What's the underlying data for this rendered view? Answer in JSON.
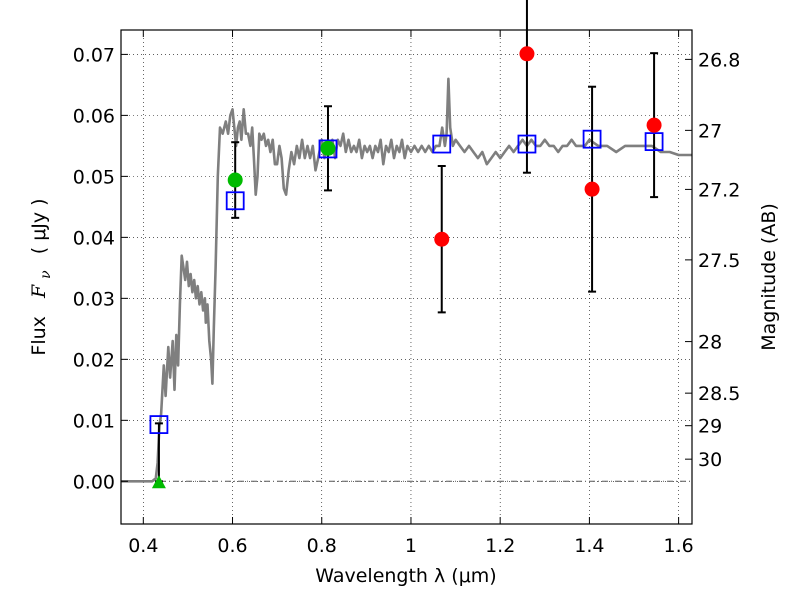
{
  "chart_data": {
    "type": "scatter",
    "xlabel": "Wavelength  λ (μm)",
    "ylabel_text": "Flux",
    "ylabel_symbol": "F",
    "ylabel_subscript": "ν",
    "ylabel_unit": "( μJy )",
    "y2label": "Magnitude (AB)",
    "xlim": [
      0.35,
      1.63
    ],
    "ylim": [
      -0.007,
      0.074
    ],
    "x_ticks": [
      0.4,
      0.6,
      0.8,
      1.0,
      1.2,
      1.4,
      1.6
    ],
    "x_tick_labels": [
      "0.4",
      "0.6",
      "0.8",
      "1",
      "1.2",
      "1.4",
      "1.6"
    ],
    "y_ticks": [
      0.0,
      0.01,
      0.02,
      0.03,
      0.04,
      0.05,
      0.06,
      0.07
    ],
    "y_tick_labels": [
      "0.00",
      "0.01",
      "0.02",
      "0.03",
      "0.04",
      "0.05",
      "0.06",
      "0.07"
    ],
    "grid": true,
    "mag_ticks": [
      {
        "label": "26.8",
        "mag": 26.8
      },
      {
        "label": "27",
        "mag": 27.0
      },
      {
        "label": "27.2",
        "mag": 27.2
      },
      {
        "label": "27.5",
        "mag": 27.5
      },
      {
        "label": "28",
        "mag": 28.0
      },
      {
        "label": "28.5",
        "mag": 28.5
      },
      {
        "label": "29",
        "mag": 29.0
      },
      {
        "label": "30",
        "mag": 30.0
      }
    ],
    "colors": {
      "model": "#7f7f7f",
      "observed": "#ff0000",
      "synthetic": "#0000ff",
      "hst": "#00bb00",
      "errorbar": "#000000"
    },
    "model_sed": [
      [
        0.35,
        0.0
      ],
      [
        0.42,
        0.0
      ],
      [
        0.428,
        0.0005
      ],
      [
        0.432,
        0.003
      ],
      [
        0.436,
        0.009
      ],
      [
        0.44,
        0.011
      ],
      [
        0.446,
        0.019
      ],
      [
        0.45,
        0.014
      ],
      [
        0.456,
        0.022
      ],
      [
        0.46,
        0.017
      ],
      [
        0.466,
        0.023
      ],
      [
        0.47,
        0.015
      ],
      [
        0.474,
        0.024
      ],
      [
        0.478,
        0.019
      ],
      [
        0.482,
        0.029
      ],
      [
        0.486,
        0.037
      ],
      [
        0.49,
        0.035
      ],
      [
        0.494,
        0.033
      ],
      [
        0.498,
        0.036
      ],
      [
        0.502,
        0.032
      ],
      [
        0.506,
        0.034
      ],
      [
        0.51,
        0.031
      ],
      [
        0.514,
        0.033
      ],
      [
        0.518,
        0.03
      ],
      [
        0.522,
        0.032
      ],
      [
        0.526,
        0.029
      ],
      [
        0.53,
        0.031
      ],
      [
        0.534,
        0.028
      ],
      [
        0.538,
        0.03
      ],
      [
        0.54,
        0.026
      ],
      [
        0.544,
        0.029
      ],
      [
        0.548,
        0.023
      ],
      [
        0.552,
        0.02
      ],
      [
        0.555,
        0.016
      ],
      [
        0.558,
        0.025
      ],
      [
        0.562,
        0.035
      ],
      [
        0.567,
        0.05
      ],
      [
        0.572,
        0.058
      ],
      [
        0.578,
        0.057
      ],
      [
        0.585,
        0.059
      ],
      [
        0.59,
        0.057
      ],
      [
        0.595,
        0.06
      ],
      [
        0.6,
        0.061
      ],
      [
        0.604,
        0.058
      ],
      [
        0.608,
        0.055
      ],
      [
        0.612,
        0.058
      ],
      [
        0.616,
        0.059
      ],
      [
        0.62,
        0.056
      ],
      [
        0.625,
        0.061
      ],
      [
        0.63,
        0.057
      ],
      [
        0.635,
        0.057
      ],
      [
        0.64,
        0.055
      ],
      [
        0.644,
        0.058
      ],
      [
        0.648,
        0.053
      ],
      [
        0.652,
        0.047
      ],
      [
        0.656,
        0.05
      ],
      [
        0.66,
        0.057
      ],
      [
        0.665,
        0.056
      ],
      [
        0.67,
        0.057
      ],
      [
        0.675,
        0.055
      ],
      [
        0.68,
        0.056
      ],
      [
        0.685,
        0.054
      ],
      [
        0.69,
        0.056
      ],
      [
        0.695,
        0.052
      ],
      [
        0.7,
        0.052
      ],
      [
        0.705,
        0.055
      ],
      [
        0.71,
        0.053
      ],
      [
        0.715,
        0.048
      ],
      [
        0.72,
        0.047
      ],
      [
        0.726,
        0.051
      ],
      [
        0.732,
        0.054
      ],
      [
        0.738,
        0.052
      ],
      [
        0.744,
        0.055
      ],
      [
        0.75,
        0.053
      ],
      [
        0.756,
        0.056
      ],
      [
        0.762,
        0.053
      ],
      [
        0.768,
        0.055
      ],
      [
        0.774,
        0.053
      ],
      [
        0.78,
        0.055
      ],
      [
        0.786,
        0.051
      ],
      [
        0.792,
        0.053
      ],
      [
        0.8,
        0.056
      ],
      [
        0.806,
        0.053
      ],
      [
        0.812,
        0.055
      ],
      [
        0.818,
        0.054
      ],
      [
        0.824,
        0.056
      ],
      [
        0.83,
        0.053
      ],
      [
        0.836,
        0.056
      ],
      [
        0.842,
        0.055
      ],
      [
        0.848,
        0.057
      ],
      [
        0.854,
        0.054
      ],
      [
        0.86,
        0.056
      ],
      [
        0.866,
        0.054
      ],
      [
        0.872,
        0.055
      ],
      [
        0.878,
        0.054
      ],
      [
        0.884,
        0.056
      ],
      [
        0.89,
        0.053
      ],
      [
        0.896,
        0.055
      ],
      [
        0.902,
        0.054
      ],
      [
        0.908,
        0.055
      ],
      [
        0.914,
        0.053
      ],
      [
        0.92,
        0.055
      ],
      [
        0.926,
        0.054
      ],
      [
        0.932,
        0.056
      ],
      [
        0.938,
        0.052
      ],
      [
        0.944,
        0.055
      ],
      [
        0.95,
        0.054
      ],
      [
        0.956,
        0.056
      ],
      [
        0.962,
        0.053
      ],
      [
        0.968,
        0.055
      ],
      [
        0.974,
        0.054
      ],
      [
        0.98,
        0.056
      ],
      [
        0.986,
        0.053
      ],
      [
        0.992,
        0.055
      ],
      [
        1.0,
        0.054
      ],
      [
        1.008,
        0.055
      ],
      [
        1.016,
        0.054
      ],
      [
        1.024,
        0.055
      ],
      [
        1.032,
        0.054
      ],
      [
        1.04,
        0.055
      ],
      [
        1.048,
        0.054
      ],
      [
        1.056,
        0.055
      ],
      [
        1.064,
        0.055
      ],
      [
        1.07,
        0.058
      ],
      [
        1.076,
        0.055
      ],
      [
        1.08,
        0.057
      ],
      [
        1.084,
        0.066
      ],
      [
        1.088,
        0.058
      ],
      [
        1.094,
        0.055
      ],
      [
        1.1,
        0.056
      ],
      [
        1.11,
        0.055
      ],
      [
        1.12,
        0.054
      ],
      [
        1.13,
        0.055
      ],
      [
        1.14,
        0.054
      ],
      [
        1.15,
        0.053
      ],
      [
        1.16,
        0.054
      ],
      [
        1.17,
        0.052
      ],
      [
        1.18,
        0.053
      ],
      [
        1.19,
        0.054
      ],
      [
        1.2,
        0.053
      ],
      [
        1.21,
        0.054
      ],
      [
        1.22,
        0.055
      ],
      [
        1.23,
        0.054
      ],
      [
        1.24,
        0.055
      ],
      [
        1.25,
        0.056
      ],
      [
        1.26,
        0.055
      ],
      [
        1.27,
        0.056
      ],
      [
        1.28,
        0.055
      ],
      [
        1.29,
        0.055
      ],
      [
        1.3,
        0.056
      ],
      [
        1.31,
        0.055
      ],
      [
        1.32,
        0.055
      ],
      [
        1.33,
        0.054
      ],
      [
        1.34,
        0.055
      ],
      [
        1.35,
        0.055
      ],
      [
        1.36,
        0.056
      ],
      [
        1.37,
        0.055
      ],
      [
        1.38,
        0.055
      ],
      [
        1.39,
        0.055
      ],
      [
        1.4,
        0.056
      ],
      [
        1.42,
        0.055
      ],
      [
        1.44,
        0.055
      ],
      [
        1.46,
        0.054
      ],
      [
        1.48,
        0.055
      ],
      [
        1.5,
        0.055
      ],
      [
        1.52,
        0.055
      ],
      [
        1.54,
        0.055
      ],
      [
        1.56,
        0.054
      ],
      [
        1.58,
        0.054
      ],
      [
        1.6,
        0.0535
      ],
      [
        1.63,
        0.0535
      ]
    ],
    "synthetic_photometry": [
      {
        "x": 0.435,
        "y": 0.0093
      },
      {
        "x": 0.606,
        "y": 0.046
      },
      {
        "x": 0.814,
        "y": 0.0545
      },
      {
        "x": 1.069,
        "y": 0.0553
      },
      {
        "x": 1.26,
        "y": 0.0553
      },
      {
        "x": 1.406,
        "y": 0.0561
      },
      {
        "x": 1.545,
        "y": 0.0557
      }
    ],
    "hst_photometry": [
      {
        "x": 0.606,
        "y": 0.0494,
        "err": 0.0062,
        "marker": "circle"
      },
      {
        "x": 0.814,
        "y": 0.0546,
        "err": 0.0069,
        "marker": "circle"
      }
    ],
    "hst_upper_limit": {
      "x": 0.435,
      "y": 0.0,
      "err_up": 0.0095,
      "marker": "triangle"
    },
    "observed_photometry": [
      {
        "x": 1.069,
        "y": 0.0397,
        "err": 0.012
      },
      {
        "x": 1.26,
        "y": 0.0701,
        "err": 0.0195
      },
      {
        "x": 1.406,
        "y": 0.0479,
        "err": 0.0168
      },
      {
        "x": 1.545,
        "y": 0.0584,
        "err": 0.0118
      }
    ]
  }
}
